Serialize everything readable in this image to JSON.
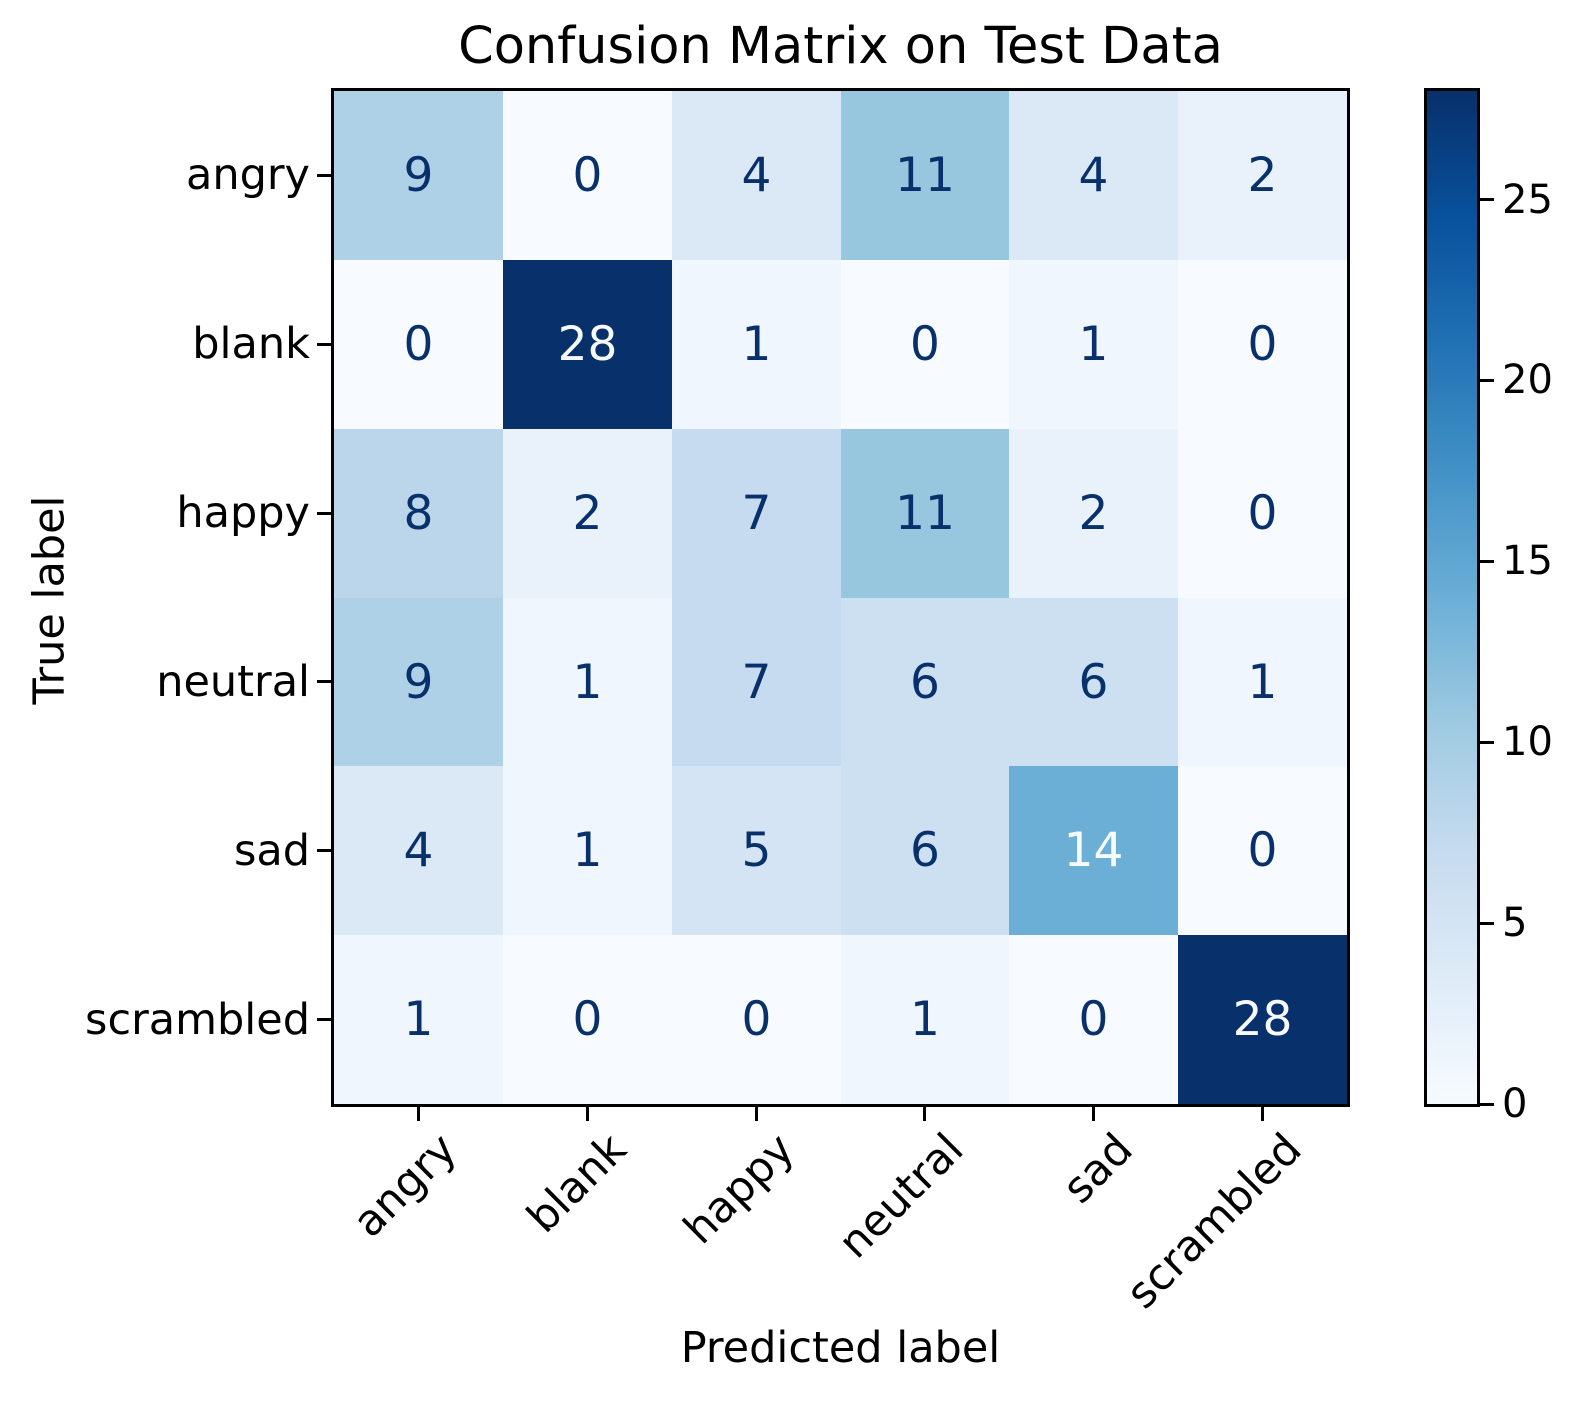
{
  "figure": {
    "background": "#ffffff"
  },
  "chart_data": {
    "type": "heatmap",
    "title": "Confusion Matrix on Test Data",
    "xlabel": "Predicted label",
    "ylabel": "True label",
    "x_tick_labels": [
      "angry",
      "blank",
      "happy",
      "neutral",
      "sad",
      "scrambled"
    ],
    "y_tick_labels": [
      "angry",
      "blank",
      "happy",
      "neutral",
      "sad",
      "scrambled"
    ],
    "matrix": [
      [
        9,
        0,
        4,
        11,
        4,
        2
      ],
      [
        0,
        28,
        1,
        0,
        1,
        0
      ],
      [
        8,
        2,
        7,
        11,
        2,
        0
      ],
      [
        9,
        1,
        7,
        6,
        6,
        1
      ],
      [
        4,
        1,
        5,
        6,
        14,
        0
      ],
      [
        1,
        0,
        0,
        1,
        0,
        28
      ]
    ],
    "vmin": 0,
    "vmax": 28,
    "colormap": "Blues",
    "colormap_anchors": [
      "#f7fbff",
      "#deebf7",
      "#c6dbef",
      "#9ecae1",
      "#6baed6",
      "#4292c6",
      "#2171b5",
      "#08519c",
      "#08306b"
    ],
    "colorbar_ticks": [
      0,
      5,
      10,
      15,
      20,
      25
    ],
    "colorbar_position": "right",
    "grid": false,
    "cell_text_color_dark": "#08306b",
    "cell_text_color_light": "#f7fbff",
    "spine_color": "#000000"
  }
}
